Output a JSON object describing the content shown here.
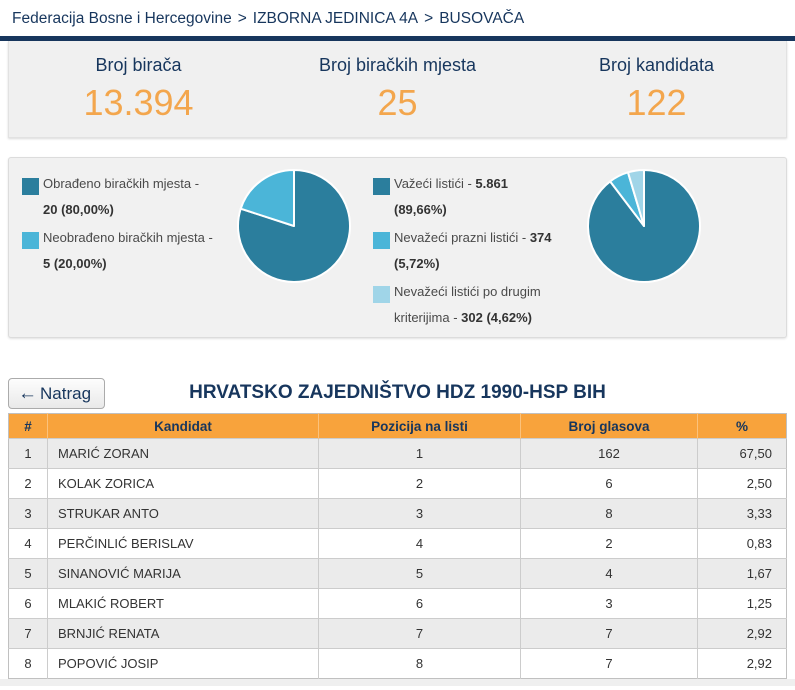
{
  "breadcrumb": {
    "separator": ">",
    "items": [
      "Federacija Bosne i Hercegovine",
      "IZBORNA JEDINICA 4A",
      "BUSOVAČA"
    ]
  },
  "stats": [
    {
      "label": "Broj birača",
      "value": "13.394"
    },
    {
      "label": "Broj biračkih mjesta",
      "value": "25"
    },
    {
      "label": "Broj kandidata",
      "value": "122"
    }
  ],
  "chart_data": [
    {
      "type": "pie",
      "name": "obradjena-biracka-mjesta",
      "slices": [
        {
          "label": "Obrađeno biračkih mjesta",
          "value": 80.0,
          "count": 20,
          "value_text": "20 (80,00%)",
          "color": "#2b7e9d"
        },
        {
          "label": "Neobrađeno biračkih mjesta",
          "value": 20.0,
          "count": 5,
          "value_text": "5 (20,00%)",
          "color": "#4bb5d8"
        }
      ],
      "legend_lines": [
        [
          [
            {
              "t": "Obrađeno biračkih mjesta -",
              "b": false
            }
          ],
          [
            {
              "t": "20 (80,00%)",
              "b": true
            }
          ]
        ],
        [
          [
            {
              "t": "Neobrađeno biračkih mjesta -",
              "b": false
            }
          ],
          [
            {
              "t": "5 (20,00%)",
              "b": true
            }
          ]
        ]
      ]
    },
    {
      "type": "pie",
      "name": "listici",
      "slices": [
        {
          "label": "Važeći listići",
          "value": 89.66,
          "count": 5861,
          "value_text": "5.861 (89,66%)",
          "color": "#2b7e9d"
        },
        {
          "label": "Nevažeći prazni listići",
          "value": 5.72,
          "count": 374,
          "value_text": "374 (5,72%)",
          "color": "#4bb5d8"
        },
        {
          "label": "Nevažeći listići po drugim kriterijima",
          "value": 4.62,
          "count": 302,
          "value_text": "302 (4,62%)",
          "color": "#a0d5e8"
        }
      ],
      "legend_lines": [
        [
          [
            {
              "t": "Važeći listići - ",
              "b": false
            },
            {
              "t": "5.861",
              "b": true
            }
          ],
          [
            {
              "t": "(89,66%)",
              "b": true
            }
          ]
        ],
        [
          [
            {
              "t": "Nevažeći prazni listići - ",
              "b": false
            },
            {
              "t": "374",
              "b": true
            }
          ],
          [
            {
              "t": "(5,72%)",
              "b": true
            }
          ]
        ],
        [
          [
            {
              "t": "Nevažeći listići po drugim",
              "b": false
            }
          ],
          [
            {
              "t": "kriterijima - ",
              "b": false
            },
            {
              "t": "302 (4,62%)",
              "b": true
            }
          ]
        ]
      ]
    }
  ],
  "back_button": {
    "icon": "←",
    "label": "Natrag"
  },
  "party_title": "HRVATSKO ZAJEDNIŠTVO HDZ 1990-HSP BIH",
  "table": {
    "headers": [
      "#",
      "Kandidat",
      "Pozicija na listi",
      "Broj glasova",
      "%"
    ],
    "rows": [
      [
        "1",
        "MARIĆ ZORAN",
        "1",
        "162",
        "67,50"
      ],
      [
        "2",
        "KOLAK ZORICA",
        "2",
        "6",
        "2,50"
      ],
      [
        "3",
        "STRUKAR ANTO",
        "3",
        "8",
        "3,33"
      ],
      [
        "4",
        "PERČINLIĆ BERISLAV",
        "4",
        "2",
        "0,83"
      ],
      [
        "5",
        "SINANOVIĆ MARIJA",
        "5",
        "4",
        "1,67"
      ],
      [
        "6",
        "MLAKIĆ ROBERT",
        "6",
        "3",
        "1,25"
      ],
      [
        "7",
        "BRNJIĆ RENATA",
        "7",
        "7",
        "2,92"
      ],
      [
        "8",
        "POPOVIĆ JOSIP",
        "8",
        "7",
        "2,92"
      ]
    ]
  },
  "colors": {
    "navy": "#17365d",
    "accent_orange": "#f3a64d",
    "table_header_orange": "#f8a33c",
    "pie_dark_teal": "#2b7e9d",
    "pie_mid_blue": "#4bb5d8",
    "pie_light_blue": "#a0d5e8",
    "panel_bg": "#f0f0f0",
    "row_alt_bg": "#ebebeb"
  }
}
